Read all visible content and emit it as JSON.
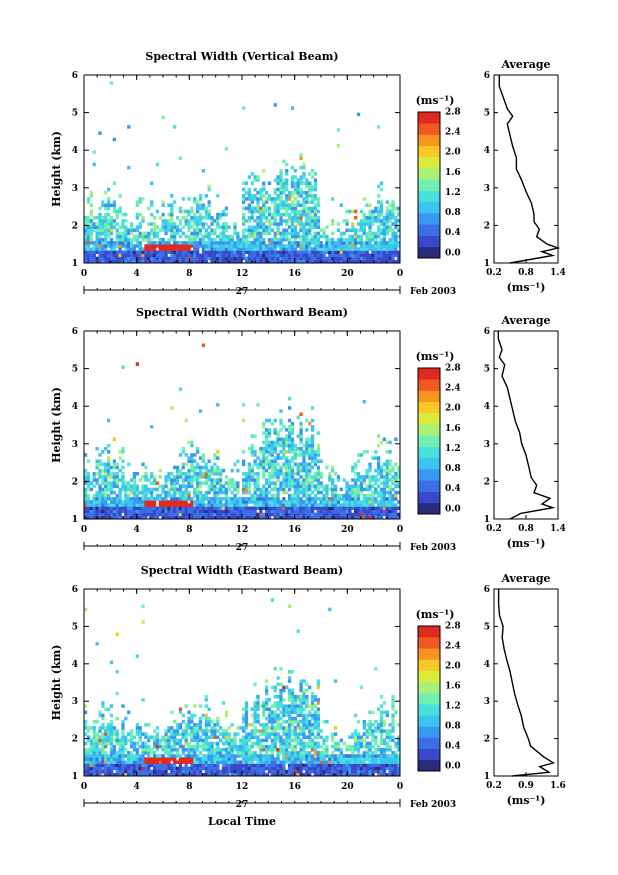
{
  "figure": {
    "xlabel": "Local Time",
    "ylabel": "Height (km)",
    "date_label": "Feb 2003",
    "day_label": "27",
    "colorbar_unit": "(ms⁻¹)",
    "average_unit": "(ms⁻¹)",
    "average_title": "Average"
  },
  "palette": [
    "#2a2d7c",
    "#3949c8",
    "#3c6ee8",
    "#3a98f0",
    "#3cc4ee",
    "#48e0dc",
    "#6ff0b0",
    "#a8f078",
    "#dcec3c",
    "#f8c828",
    "#f89420",
    "#f05a20",
    "#e02a20"
  ],
  "chart_data": [
    {
      "type": "heatmap",
      "title": "Spectral Width (Vertical Beam)",
      "x_ticks": [
        "0",
        "4",
        "8",
        "12",
        "16",
        "20",
        "0"
      ],
      "y_ticks": [
        "1",
        "2",
        "3",
        "4",
        "5",
        "6"
      ],
      "xlim": [
        0,
        24
      ],
      "ylim": [
        1,
        6
      ],
      "colorbar_ticks": [
        "0.0",
        "0.4",
        "0.8",
        "1.2",
        "1.6",
        "2.0",
        "2.4",
        "2.8"
      ],
      "colorbar_range": [
        0.0,
        2.9
      ],
      "profile": {
        "x_ticks": [
          "0.2",
          "0.8",
          "1.4"
        ],
        "xlim": [
          0.2,
          1.4
        ],
        "y": [
          1.0,
          1.2,
          1.3,
          1.4,
          1.5,
          1.7,
          1.9,
          2.1,
          2.3,
          2.6,
          2.9,
          3.2,
          3.5,
          3.8,
          4.1,
          4.4,
          4.7,
          4.9,
          5.1,
          5.3,
          5.5,
          5.7,
          6.0
        ],
        "x": [
          0.5,
          1.3,
          1.1,
          1.4,
          1.2,
          1.0,
          1.05,
          0.95,
          0.95,
          0.9,
          0.8,
          0.72,
          0.62,
          0.62,
          0.55,
          0.5,
          0.45,
          0.55,
          0.45,
          0.4,
          0.35,
          0.3,
          0.3
        ]
      }
    },
    {
      "type": "heatmap",
      "title": "Spectral Width (Northward Beam)",
      "x_ticks": [
        "0",
        "4",
        "8",
        "12",
        "16",
        "20",
        "0"
      ],
      "y_ticks": [
        "1",
        "2",
        "3",
        "4",
        "5",
        "6"
      ],
      "xlim": [
        0,
        24
      ],
      "ylim": [
        1,
        6
      ],
      "colorbar_ticks": [
        "0.0",
        "0.4",
        "0.8",
        "1.2",
        "1.6",
        "2.0",
        "2.4",
        "2.8"
      ],
      "colorbar_range": [
        0.0,
        2.9
      ],
      "profile": {
        "x_ticks": [
          "0.2",
          "0.8",
          "1.4"
        ],
        "xlim": [
          0.2,
          1.4
        ],
        "y": [
          1.0,
          1.15,
          1.3,
          1.4,
          1.55,
          1.7,
          1.9,
          2.1,
          2.4,
          2.7,
          3.0,
          3.3,
          3.6,
          3.9,
          4.2,
          4.5,
          4.8,
          5.1,
          5.3,
          5.5,
          5.8,
          6.0
        ],
        "x": [
          0.5,
          0.7,
          1.3,
          1.1,
          1.25,
          0.95,
          1.0,
          0.9,
          0.85,
          0.8,
          0.72,
          0.68,
          0.6,
          0.55,
          0.5,
          0.45,
          0.35,
          0.4,
          0.3,
          0.35,
          0.28,
          0.28
        ]
      }
    },
    {
      "type": "heatmap",
      "title": "Spectral Width (Eastward Beam)",
      "x_ticks": [
        "0",
        "4",
        "8",
        "12",
        "16",
        "20",
        "0"
      ],
      "y_ticks": [
        "1",
        "2",
        "3",
        "4",
        "5",
        "6"
      ],
      "xlim": [
        0,
        24
      ],
      "ylim": [
        1,
        6
      ],
      "colorbar_ticks": [
        "0.0",
        "0.4",
        "0.8",
        "1.2",
        "1.6",
        "2.0",
        "2.4",
        "2.8"
      ],
      "colorbar_range": [
        0.0,
        2.9
      ],
      "profile": {
        "x_ticks": [
          "0.2",
          "0.9",
          "1.6"
        ],
        "xlim": [
          0.2,
          1.6
        ],
        "y": [
          1.0,
          1.1,
          1.25,
          1.35,
          1.5,
          1.6,
          1.8,
          2.0,
          2.3,
          2.6,
          2.9,
          3.2,
          3.5,
          3.8,
          4.1,
          4.4,
          4.7,
          5.0,
          5.3,
          5.6,
          6.0
        ],
        "x": [
          0.6,
          1.4,
          1.2,
          1.5,
          1.3,
          1.2,
          1.0,
          0.95,
          0.85,
          0.8,
          0.72,
          0.65,
          0.6,
          0.55,
          0.48,
          0.42,
          0.38,
          0.4,
          0.32,
          0.3,
          0.3
        ]
      }
    }
  ]
}
